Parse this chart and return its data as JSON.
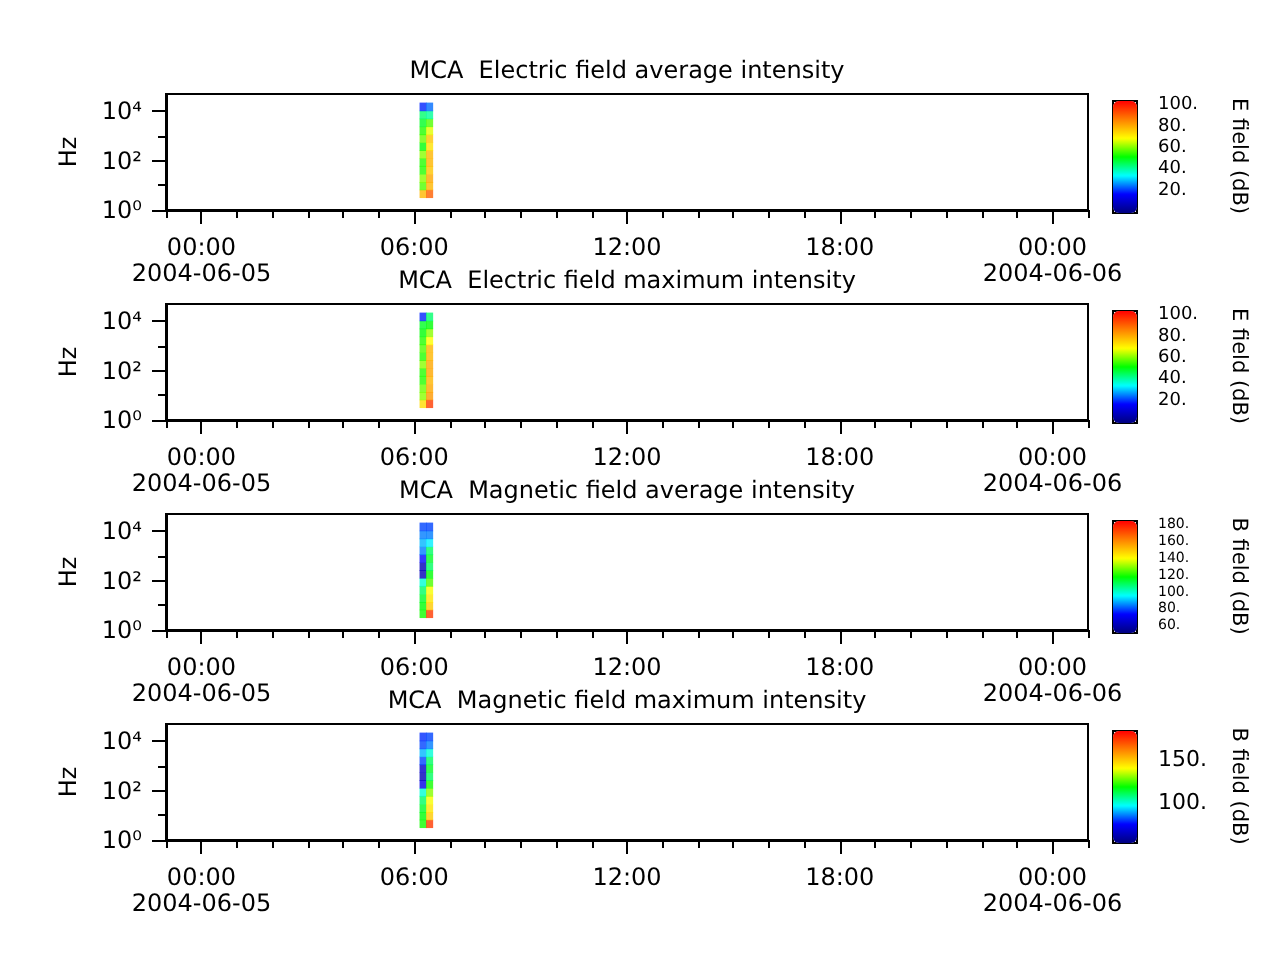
{
  "chart_data": [
    {
      "type": "scatter",
      "title": "MCA  Electric field average intensity",
      "ylabel": "Hz",
      "clabel": "E field (dB)",
      "marker": "square",
      "log": "y",
      "x": [
        "2004-06-05T06:15",
        "2004-06-05T06:15",
        "2004-06-05T06:15",
        "2004-06-05T06:15",
        "2004-06-05T06:15",
        "2004-06-05T06:15",
        "2004-06-05T06:15",
        "2004-06-05T06:15",
        "2004-06-05T06:15",
        "2004-06-05T06:15",
        "2004-06-05T06:15",
        "2004-06-05T06:15",
        "2004-06-05T06:26",
        "2004-06-05T06:26",
        "2004-06-05T06:26",
        "2004-06-05T06:26",
        "2004-06-05T06:26",
        "2004-06-05T06:26",
        "2004-06-05T06:26",
        "2004-06-05T06:26",
        "2004-06-05T06:26",
        "2004-06-05T06:26",
        "2004-06-05T06:26",
        "2004-06-05T06:26"
      ],
      "values": [
        4.5,
        9.3,
        19,
        41,
        85,
        180,
        370,
        780,
        1600,
        3400,
        7100,
        15000,
        4.5,
        9.3,
        19,
        41,
        85,
        180,
        370,
        780,
        1600,
        3400,
        7100,
        15000
      ],
      "cvalues": [
        80,
        58,
        62,
        55,
        55,
        62,
        52,
        60,
        55,
        50,
        45,
        20,
        92,
        80,
        82,
        78,
        80,
        80,
        74,
        78,
        68,
        58,
        42,
        25
      ],
      "xlim": [
        "2004-06-04T23:00",
        "2004-06-06T01:00"
      ],
      "xticks": [
        {
          "value": "2004-06-04T23:00",
          "label": null
        },
        {
          "value": "2004-06-05T00:00",
          "label": "00:00\n2004-06-05"
        },
        {
          "value": "2004-06-05T01:00",
          "label": null
        },
        {
          "value": "2004-06-05T02:00",
          "label": null
        },
        {
          "value": "2004-06-05T03:00",
          "label": null
        },
        {
          "value": "2004-06-05T04:00",
          "label": null
        },
        {
          "value": "2004-06-05T05:00",
          "label": null
        },
        {
          "value": "2004-06-05T06:00",
          "label": "06:00"
        },
        {
          "value": "2004-06-05T07:00",
          "label": null
        },
        {
          "value": "2004-06-05T08:00",
          "label": null
        },
        {
          "value": "2004-06-05T09:00",
          "label": null
        },
        {
          "value": "2004-06-05T10:00",
          "label": null
        },
        {
          "value": "2004-06-05T11:00",
          "label": null
        },
        {
          "value": "2004-06-05T12:00",
          "label": "12:00"
        },
        {
          "value": "2004-06-05T13:00",
          "label": null
        },
        {
          "value": "2004-06-05T14:00",
          "label": null
        },
        {
          "value": "2004-06-05T15:00",
          "label": null
        },
        {
          "value": "2004-06-05T16:00",
          "label": null
        },
        {
          "value": "2004-06-05T17:00",
          "label": null
        },
        {
          "value": "2004-06-05T18:00",
          "label": "18:00"
        },
        {
          "value": "2004-06-05T19:00",
          "label": null
        },
        {
          "value": "2004-06-05T20:00",
          "label": null
        },
        {
          "value": "2004-06-05T21:00",
          "label": null
        },
        {
          "value": "2004-06-05T22:00",
          "label": null
        },
        {
          "value": "2004-06-05T23:00",
          "label": null
        },
        {
          "value": "2004-06-06T00:00",
          "label": "00:00\n2004-06-06"
        },
        {
          "value": "2004-06-06T01:00",
          "label": null
        }
      ],
      "ylim": [
        1,
        50000
      ],
      "yticks": [
        {
          "value": 1,
          "label": "10⁰"
        },
        {
          "value": 10,
          "label": null
        },
        {
          "value": 100,
          "label": "10²"
        },
        {
          "value": 1000,
          "label": null
        },
        {
          "value": 10000,
          "label": "10⁴"
        }
      ],
      "clim": [
        0,
        105
      ],
      "cticks": [
        {
          "value": 20,
          "label": "20."
        },
        {
          "value": 40,
          "label": "40."
        },
        {
          "value": 60,
          "label": "60."
        },
        {
          "value": 80,
          "label": "80."
        },
        {
          "value": 100,
          "label": "100."
        }
      ]
    },
    {
      "type": "scatter",
      "title": "MCA  Electric field maximum intensity",
      "ylabel": "Hz",
      "clabel": "E field (dB)",
      "marker": "square",
      "log": "y",
      "x": [
        "2004-06-05T06:15",
        "2004-06-05T06:15",
        "2004-06-05T06:15",
        "2004-06-05T06:15",
        "2004-06-05T06:15",
        "2004-06-05T06:15",
        "2004-06-05T06:15",
        "2004-06-05T06:15",
        "2004-06-05T06:15",
        "2004-06-05T06:15",
        "2004-06-05T06:15",
        "2004-06-05T06:15",
        "2004-06-05T06:26",
        "2004-06-05T06:26",
        "2004-06-05T06:26",
        "2004-06-05T06:26",
        "2004-06-05T06:26",
        "2004-06-05T06:26",
        "2004-06-05T06:26",
        "2004-06-05T06:26",
        "2004-06-05T06:26",
        "2004-06-05T06:26",
        "2004-06-05T06:26",
        "2004-06-05T06:26"
      ],
      "values": [
        4.5,
        9.3,
        19,
        41,
        85,
        180,
        370,
        780,
        1600,
        3400,
        7100,
        15000,
        4.5,
        9.3,
        19,
        41,
        85,
        180,
        370,
        780,
        1600,
        3400,
        7100,
        15000
      ],
      "cvalues": [
        75,
        62,
        60,
        55,
        55,
        62,
        55,
        58,
        55,
        52,
        50,
        20,
        97,
        84,
        82,
        80,
        82,
        82,
        80,
        80,
        70,
        62,
        52,
        45
      ],
      "xlim": [
        "2004-06-04T23:00",
        "2004-06-06T01:00"
      ],
      "xticks": [
        {
          "value": "2004-06-04T23:00",
          "label": null
        },
        {
          "value": "2004-06-05T00:00",
          "label": "00:00\n2004-06-05"
        },
        {
          "value": "2004-06-05T01:00",
          "label": null
        },
        {
          "value": "2004-06-05T02:00",
          "label": null
        },
        {
          "value": "2004-06-05T03:00",
          "label": null
        },
        {
          "value": "2004-06-05T04:00",
          "label": null
        },
        {
          "value": "2004-06-05T05:00",
          "label": null
        },
        {
          "value": "2004-06-05T06:00",
          "label": "06:00"
        },
        {
          "value": "2004-06-05T07:00",
          "label": null
        },
        {
          "value": "2004-06-05T08:00",
          "label": null
        },
        {
          "value": "2004-06-05T09:00",
          "label": null
        },
        {
          "value": "2004-06-05T10:00",
          "label": null
        },
        {
          "value": "2004-06-05T11:00",
          "label": null
        },
        {
          "value": "2004-06-05T12:00",
          "label": "12:00"
        },
        {
          "value": "2004-06-05T13:00",
          "label": null
        },
        {
          "value": "2004-06-05T14:00",
          "label": null
        },
        {
          "value": "2004-06-05T15:00",
          "label": null
        },
        {
          "value": "2004-06-05T16:00",
          "label": null
        },
        {
          "value": "2004-06-05T17:00",
          "label": null
        },
        {
          "value": "2004-06-05T18:00",
          "label": "18:00"
        },
        {
          "value": "2004-06-05T19:00",
          "label": null
        },
        {
          "value": "2004-06-05T20:00",
          "label": null
        },
        {
          "value": "2004-06-05T21:00",
          "label": null
        },
        {
          "value": "2004-06-05T22:00",
          "label": null
        },
        {
          "value": "2004-06-05T23:00",
          "label": null
        },
        {
          "value": "2004-06-06T00:00",
          "label": "00:00\n2004-06-06"
        },
        {
          "value": "2004-06-06T01:00",
          "label": null
        }
      ],
      "ylim": [
        1,
        50000
      ],
      "yticks": [
        {
          "value": 1,
          "label": "10⁰"
        },
        {
          "value": 10,
          "label": null
        },
        {
          "value": 100,
          "label": "10²"
        },
        {
          "value": 1000,
          "label": null
        },
        {
          "value": 10000,
          "label": "10⁴"
        }
      ],
      "clim": [
        0,
        105
      ],
      "cticks": [
        {
          "value": 20,
          "label": "20."
        },
        {
          "value": 40,
          "label": "40."
        },
        {
          "value": 60,
          "label": "60."
        },
        {
          "value": 80,
          "label": "80."
        },
        {
          "value": 100,
          "label": "100."
        }
      ]
    },
    {
      "type": "scatter",
      "title": "MCA  Magnetic field average intensity",
      "ylabel": "Hz",
      "clabel": "B field (dB)",
      "marker": "square",
      "log": "y",
      "x": [
        "2004-06-05T06:15",
        "2004-06-05T06:15",
        "2004-06-05T06:15",
        "2004-06-05T06:15",
        "2004-06-05T06:15",
        "2004-06-05T06:15",
        "2004-06-05T06:15",
        "2004-06-05T06:15",
        "2004-06-05T06:15",
        "2004-06-05T06:15",
        "2004-06-05T06:15",
        "2004-06-05T06:15",
        "2004-06-05T06:26",
        "2004-06-05T06:26",
        "2004-06-05T06:26",
        "2004-06-05T06:26",
        "2004-06-05T06:26",
        "2004-06-05T06:26",
        "2004-06-05T06:26",
        "2004-06-05T06:26",
        "2004-06-05T06:26",
        "2004-06-05T06:26",
        "2004-06-05T06:26",
        "2004-06-05T06:26"
      ],
      "values": [
        4.5,
        9.3,
        19,
        41,
        85,
        180,
        370,
        780,
        1600,
        3400,
        7100,
        15000,
        4.5,
        9.3,
        19,
        41,
        85,
        180,
        370,
        780,
        1600,
        3400,
        7100,
        15000
      ],
      "cvalues": [
        120,
        118,
        115,
        110,
        100,
        62,
        62,
        75,
        85,
        90,
        85,
        80,
        175,
        150,
        145,
        140,
        125,
        118,
        110,
        115,
        110,
        95,
        85,
        80
      ],
      "xlim": [
        "2004-06-04T23:00",
        "2004-06-06T01:00"
      ],
      "xticks": [
        {
          "value": "2004-06-04T23:00",
          "label": null
        },
        {
          "value": "2004-06-05T00:00",
          "label": "00:00\n2004-06-05"
        },
        {
          "value": "2004-06-05T01:00",
          "label": null
        },
        {
          "value": "2004-06-05T02:00",
          "label": null
        },
        {
          "value": "2004-06-05T03:00",
          "label": null
        },
        {
          "value": "2004-06-05T04:00",
          "label": null
        },
        {
          "value": "2004-06-05T05:00",
          "label": null
        },
        {
          "value": "2004-06-05T06:00",
          "label": "06:00"
        },
        {
          "value": "2004-06-05T07:00",
          "label": null
        },
        {
          "value": "2004-06-05T08:00",
          "label": null
        },
        {
          "value": "2004-06-05T09:00",
          "label": null
        },
        {
          "value": "2004-06-05T10:00",
          "label": null
        },
        {
          "value": "2004-06-05T11:00",
          "label": null
        },
        {
          "value": "2004-06-05T12:00",
          "label": "12:00"
        },
        {
          "value": "2004-06-05T13:00",
          "label": null
        },
        {
          "value": "2004-06-05T14:00",
          "label": null
        },
        {
          "value": "2004-06-05T15:00",
          "label": null
        },
        {
          "value": "2004-06-05T16:00",
          "label": null
        },
        {
          "value": "2004-06-05T17:00",
          "label": null
        },
        {
          "value": "2004-06-05T18:00",
          "label": "18:00"
        },
        {
          "value": "2004-06-05T19:00",
          "label": null
        },
        {
          "value": "2004-06-05T20:00",
          "label": null
        },
        {
          "value": "2004-06-05T21:00",
          "label": null
        },
        {
          "value": "2004-06-05T22:00",
          "label": null
        },
        {
          "value": "2004-06-05T23:00",
          "label": null
        },
        {
          "value": "2004-06-06T00:00",
          "label": "00:00\n2004-06-06"
        },
        {
          "value": "2004-06-06T01:00",
          "label": null
        }
      ],
      "ylim": [
        1,
        50000
      ],
      "yticks": [
        {
          "value": 1,
          "label": "10⁰"
        },
        {
          "value": 10,
          "label": null
        },
        {
          "value": 100,
          "label": "10²"
        },
        {
          "value": 1000,
          "label": null
        },
        {
          "value": 10000,
          "label": "10⁴"
        }
      ],
      "clim": [
        52,
        185
      ],
      "cticks": [
        {
          "value": 60,
          "label": "60."
        },
        {
          "value": 70,
          "label": null
        },
        {
          "value": 80,
          "label": "80."
        },
        {
          "value": 90,
          "label": null
        },
        {
          "value": 100,
          "label": "100."
        },
        {
          "value": 110,
          "label": null
        },
        {
          "value": 120,
          "label": "120."
        },
        {
          "value": 130,
          "label": null
        },
        {
          "value": 140,
          "label": "140."
        },
        {
          "value": 150,
          "label": null
        },
        {
          "value": 160,
          "label": "160."
        },
        {
          "value": 170,
          "label": null
        },
        {
          "value": 180,
          "label": "180."
        }
      ]
    },
    {
      "type": "scatter",
      "title": "MCA  Magnetic field maximum intensity",
      "ylabel": "Hz",
      "clabel": "B field (dB)",
      "marker": "square",
      "log": "y",
      "x": [
        "2004-06-05T06:15",
        "2004-06-05T06:15",
        "2004-06-05T06:15",
        "2004-06-05T06:15",
        "2004-06-05T06:15",
        "2004-06-05T06:15",
        "2004-06-05T06:15",
        "2004-06-05T06:15",
        "2004-06-05T06:15",
        "2004-06-05T06:15",
        "2004-06-05T06:15",
        "2004-06-05T06:15",
        "2004-06-05T06:26",
        "2004-06-05T06:26",
        "2004-06-05T06:26",
        "2004-06-05T06:26",
        "2004-06-05T06:26",
        "2004-06-05T06:26",
        "2004-06-05T06:26",
        "2004-06-05T06:26",
        "2004-06-05T06:26",
        "2004-06-05T06:26",
        "2004-06-05T06:26",
        "2004-06-05T06:26"
      ],
      "values": [
        4.5,
        9.3,
        19,
        41,
        85,
        180,
        370,
        780,
        1600,
        3400,
        7100,
        15000,
        4.5,
        9.3,
        19,
        41,
        85,
        180,
        370,
        780,
        1600,
        3400,
        7100,
        15000
      ],
      "cvalues": [
        120,
        118,
        115,
        110,
        100,
        70,
        62,
        65,
        80,
        90,
        80,
        78,
        175,
        150,
        145,
        140,
        130,
        120,
        110,
        115,
        110,
        100,
        85,
        80
      ],
      "xlim": [
        "2004-06-04T23:00",
        "2004-06-06T01:00"
      ],
      "xticks": [
        {
          "value": "2004-06-04T23:00",
          "label": null
        },
        {
          "value": "2004-06-05T00:00",
          "label": "00:00\n2004-06-05"
        },
        {
          "value": "2004-06-05T01:00",
          "label": null
        },
        {
          "value": "2004-06-05T02:00",
          "label": null
        },
        {
          "value": "2004-06-05T03:00",
          "label": null
        },
        {
          "value": "2004-06-05T04:00",
          "label": null
        },
        {
          "value": "2004-06-05T05:00",
          "label": null
        },
        {
          "value": "2004-06-05T06:00",
          "label": "06:00"
        },
        {
          "value": "2004-06-05T07:00",
          "label": null
        },
        {
          "value": "2004-06-05T08:00",
          "label": null
        },
        {
          "value": "2004-06-05T09:00",
          "label": null
        },
        {
          "value": "2004-06-05T10:00",
          "label": null
        },
        {
          "value": "2004-06-05T11:00",
          "label": null
        },
        {
          "value": "2004-06-05T12:00",
          "label": "12:00"
        },
        {
          "value": "2004-06-05T13:00",
          "label": null
        },
        {
          "value": "2004-06-05T14:00",
          "label": null
        },
        {
          "value": "2004-06-05T15:00",
          "label": null
        },
        {
          "value": "2004-06-05T16:00",
          "label": null
        },
        {
          "value": "2004-06-05T17:00",
          "label": null
        },
        {
          "value": "2004-06-05T18:00",
          "label": "18:00"
        },
        {
          "value": "2004-06-05T19:00",
          "label": null
        },
        {
          "value": "2004-06-05T20:00",
          "label": null
        },
        {
          "value": "2004-06-05T21:00",
          "label": null
        },
        {
          "value": "2004-06-05T22:00",
          "label": null
        },
        {
          "value": "2004-06-05T23:00",
          "label": null
        },
        {
          "value": "2004-06-06T00:00",
          "label": "00:00\n2004-06-06"
        },
        {
          "value": "2004-06-06T01:00",
          "label": null
        }
      ],
      "ylim": [
        1,
        50000
      ],
      "yticks": [
        {
          "value": 1,
          "label": "10⁰"
        },
        {
          "value": 10,
          "label": null
        },
        {
          "value": 100,
          "label": "10²"
        },
        {
          "value": 1000,
          "label": null
        },
        {
          "value": 10000,
          "label": "10⁴"
        }
      ],
      "clim": [
        52,
        185
      ],
      "cticks": [
        {
          "value": 70,
          "label": null
        },
        {
          "value": 80,
          "label": null
        },
        {
          "value": 90,
          "label": null
        },
        {
          "value": 100,
          "label": "100."
        },
        {
          "value": 110,
          "label": null
        },
        {
          "value": 120,
          "label": null
        },
        {
          "value": 130,
          "label": null
        },
        {
          "value": 140,
          "label": null
        },
        {
          "value": 150,
          "label": "150."
        },
        {
          "value": 160,
          "label": null
        },
        {
          "value": 170,
          "label": null
        },
        {
          "value": 180,
          "label": null
        }
      ]
    }
  ]
}
